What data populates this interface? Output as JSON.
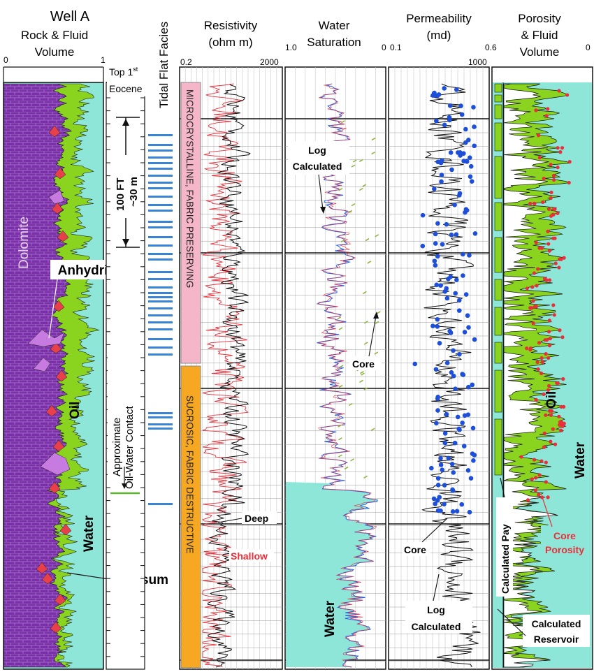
{
  "figure": {
    "well_title": "Well A",
    "tracks": [
      {
        "id": "rock",
        "title": "Rock & Fluid Volume",
        "scale_left": "0",
        "scale_right": "1"
      },
      {
        "id": "depth",
        "title": "",
        "scale_left": "",
        "scale_right": ""
      },
      {
        "id": "facies",
        "title": "Tidal Flat Facies",
        "scale_left": "",
        "scale_right": ""
      },
      {
        "id": "resistivity",
        "title": "Resistivity (ohm m)",
        "scale_left": "0.2",
        "scale_right": "2000"
      },
      {
        "id": "sw",
        "title": "Water Saturation",
        "scale_left": "1.0",
        "scale_right": "0"
      },
      {
        "id": "perm",
        "title": "Permeability (md)",
        "scale_left": "0.1",
        "scale_right": "1000"
      },
      {
        "id": "poro",
        "title": "Porosity & Fluid Volume",
        "scale_left": "0.6",
        "scale_right": "0"
      }
    ],
    "depth_track": {
      "top_label_main": "Top 1",
      "top_label_sup": "st",
      "top_label_line2": "Eocene",
      "scale_bar_ft": "100 FT",
      "scale_bar_m": "~30 m",
      "owc_line1": "Approximate",
      "owc_line2": "Oil-Water Contact"
    },
    "facies": {
      "upper": "MICROCRYSTALLINE, FABRIC PRESERVING",
      "lower": "SUCROSIC, FABRIC DESTRUCTIVE",
      "upper_color": "#f4b6c8",
      "lower_color": "#f7a823"
    },
    "annotations": {
      "dolomite": "Dolomite",
      "anhydrite": "Anhydrite",
      "oil": "Oil",
      "water": "Water",
      "gypsum": "Gypsum",
      "deep": "Deep",
      "shallow": "Shallow",
      "log_calculated_1": "Log",
      "log_calculated_2": "Calculated",
      "core": "Core",
      "core_porosity_1": "Core",
      "core_porosity_2": "Porosity",
      "calculated_pay": "Calculated Pay",
      "calculated_reservoir_1": "Calculated",
      "calculated_reservoir_2": "Reservoir"
    },
    "colors": {
      "dolomite": "#7b2fa8",
      "oil": "#8ad420",
      "water": "#8ee6d8",
      "anhydrite": "#c77be0",
      "gypsum": "#e8404a",
      "core_points": "#1e4fd8",
      "shallow": "#e8303a",
      "deep": "#111111",
      "facies_bars": "#3a84d6",
      "owc": "#5cb82c"
    }
  }
}
